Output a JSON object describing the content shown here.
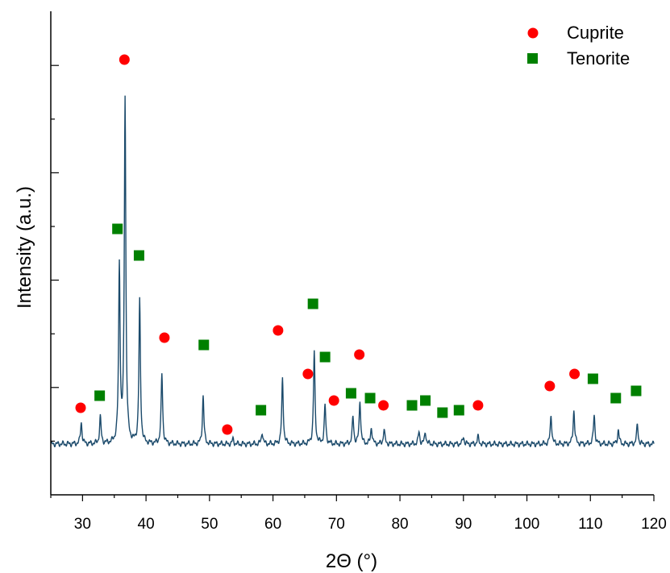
{
  "chart_data": {
    "type": "line",
    "xlabel": "2Θ (°)",
    "ylabel": "Intensity (a.u.)",
    "xlim": [
      25,
      120
    ],
    "ylim": [
      0,
      100
    ],
    "x_ticks": [
      30,
      40,
      50,
      60,
      70,
      80,
      90,
      100,
      110,
      120
    ],
    "y_ticks_labeled": false,
    "legend_position": "top-right",
    "colors": {
      "trace": "#1b4a6b",
      "cuprite": "#ff0000",
      "tenorite": "#008000"
    },
    "series": [
      {
        "type": "line",
        "baseline": 10.5,
        "peaks": [
          {
            "x": 29.8,
            "y": 15.0
          },
          {
            "x": 32.8,
            "y": 16.0
          },
          {
            "x": 35.8,
            "y": 47.0
          },
          {
            "x": 36.7,
            "y": 82.0
          },
          {
            "x": 39.0,
            "y": 40.0
          },
          {
            "x": 42.5,
            "y": 25.0
          },
          {
            "x": 49.0,
            "y": 20.5
          },
          {
            "x": 53.7,
            "y": 11.5
          },
          {
            "x": 58.3,
            "y": 13.0
          },
          {
            "x": 61.5,
            "y": 24.0
          },
          {
            "x": 66.5,
            "y": 29.5
          },
          {
            "x": 68.2,
            "y": 18.5
          },
          {
            "x": 72.6,
            "y": 16.0
          },
          {
            "x": 73.7,
            "y": 19.5
          },
          {
            "x": 75.5,
            "y": 14.0
          },
          {
            "x": 77.5,
            "y": 13.5
          },
          {
            "x": 83.0,
            "y": 13.0
          },
          {
            "x": 84.0,
            "y": 13.0
          },
          {
            "x": 90.0,
            "y": 12.0
          },
          {
            "x": 92.3,
            "y": 12.0
          },
          {
            "x": 103.8,
            "y": 16.5
          },
          {
            "x": 107.4,
            "y": 17.5
          },
          {
            "x": 110.6,
            "y": 16.5
          },
          {
            "x": 114.4,
            "y": 13.5
          },
          {
            "x": 117.4,
            "y": 14.5
          }
        ]
      },
      {
        "name": "Cuprite",
        "type": "scatter",
        "marker": "circle",
        "points": [
          {
            "x": 29.7,
            "y": 18.0
          },
          {
            "x": 36.6,
            "y": 90.0
          },
          {
            "x": 42.9,
            "y": 32.5
          },
          {
            "x": 52.8,
            "y": 13.5
          },
          {
            "x": 60.8,
            "y": 34.0
          },
          {
            "x": 65.5,
            "y": 25.0
          },
          {
            "x": 69.6,
            "y": 19.5
          },
          {
            "x": 73.6,
            "y": 29.0
          },
          {
            "x": 77.4,
            "y": 18.5
          },
          {
            "x": 92.3,
            "y": 18.5
          },
          {
            "x": 103.6,
            "y": 22.5
          },
          {
            "x": 107.5,
            "y": 25.0
          }
        ]
      },
      {
        "name": "Tenorite",
        "type": "scatter",
        "marker": "square",
        "points": [
          {
            "x": 32.7,
            "y": 20.5
          },
          {
            "x": 35.5,
            "y": 55.0
          },
          {
            "x": 38.9,
            "y": 49.5
          },
          {
            "x": 49.1,
            "y": 31.0
          },
          {
            "x": 58.1,
            "y": 17.5
          },
          {
            "x": 66.3,
            "y": 39.5
          },
          {
            "x": 68.2,
            "y": 28.5
          },
          {
            "x": 72.3,
            "y": 21.0
          },
          {
            "x": 75.3,
            "y": 20.0
          },
          {
            "x": 81.9,
            "y": 18.5
          },
          {
            "x": 84.0,
            "y": 19.5
          },
          {
            "x": 86.7,
            "y": 17.0
          },
          {
            "x": 89.3,
            "y": 17.5
          },
          {
            "x": 110.4,
            "y": 24.0
          },
          {
            "x": 114.0,
            "y": 20.0
          },
          {
            "x": 117.2,
            "y": 21.5
          }
        ]
      }
    ]
  }
}
